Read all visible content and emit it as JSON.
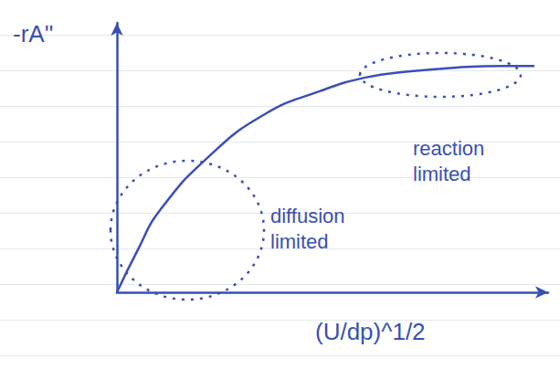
{
  "chart_data": {
    "type": "line",
    "xlabel": "(U/dp)^1/2",
    "ylabel": "-rA''",
    "x": [
      0,
      0.47,
      1.0,
      2.16,
      3.43,
      4.7,
      5.76,
      6.82,
      7.88,
      8.94,
      9.68
    ],
    "values": [
      0,
      1.53,
      3.05,
      5.08,
      6.61,
      7.46,
      7.97,
      8.2,
      8.34,
      8.4,
      8.4
    ],
    "color": "#3a4fb5",
    "xlim": [
      0,
      10
    ],
    "ylim": [
      0,
      10
    ],
    "grid": false,
    "tick_labels": false,
    "marker": "none",
    "line_style": "solid",
    "annotations": [
      "diffusion limited",
      "reaction limited"
    ]
  }
}
